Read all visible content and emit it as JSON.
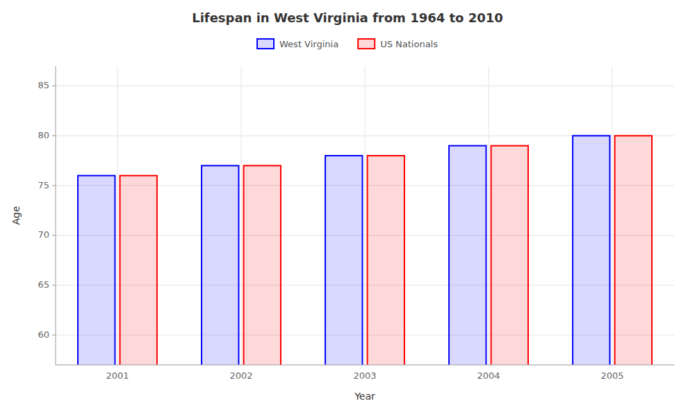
{
  "chart_data": {
    "type": "bar",
    "title": "Lifespan in West Virginia from 1964 to 2010",
    "xlabel": "Year",
    "ylabel": "Age",
    "categories": [
      "2001",
      "2002",
      "2003",
      "2004",
      "2005"
    ],
    "series": [
      {
        "name": "West Virginia",
        "color": "#0000ff",
        "values": [
          76,
          77,
          78,
          79,
          80
        ]
      },
      {
        "name": "US Nationals",
        "color": "#ff0000",
        "values": [
          76,
          77,
          78,
          79,
          80
        ]
      }
    ],
    "ylim": [
      57,
      87
    ],
    "yticks": [
      60,
      65,
      70,
      75,
      80,
      85
    ],
    "grid": true,
    "legend": "top"
  }
}
